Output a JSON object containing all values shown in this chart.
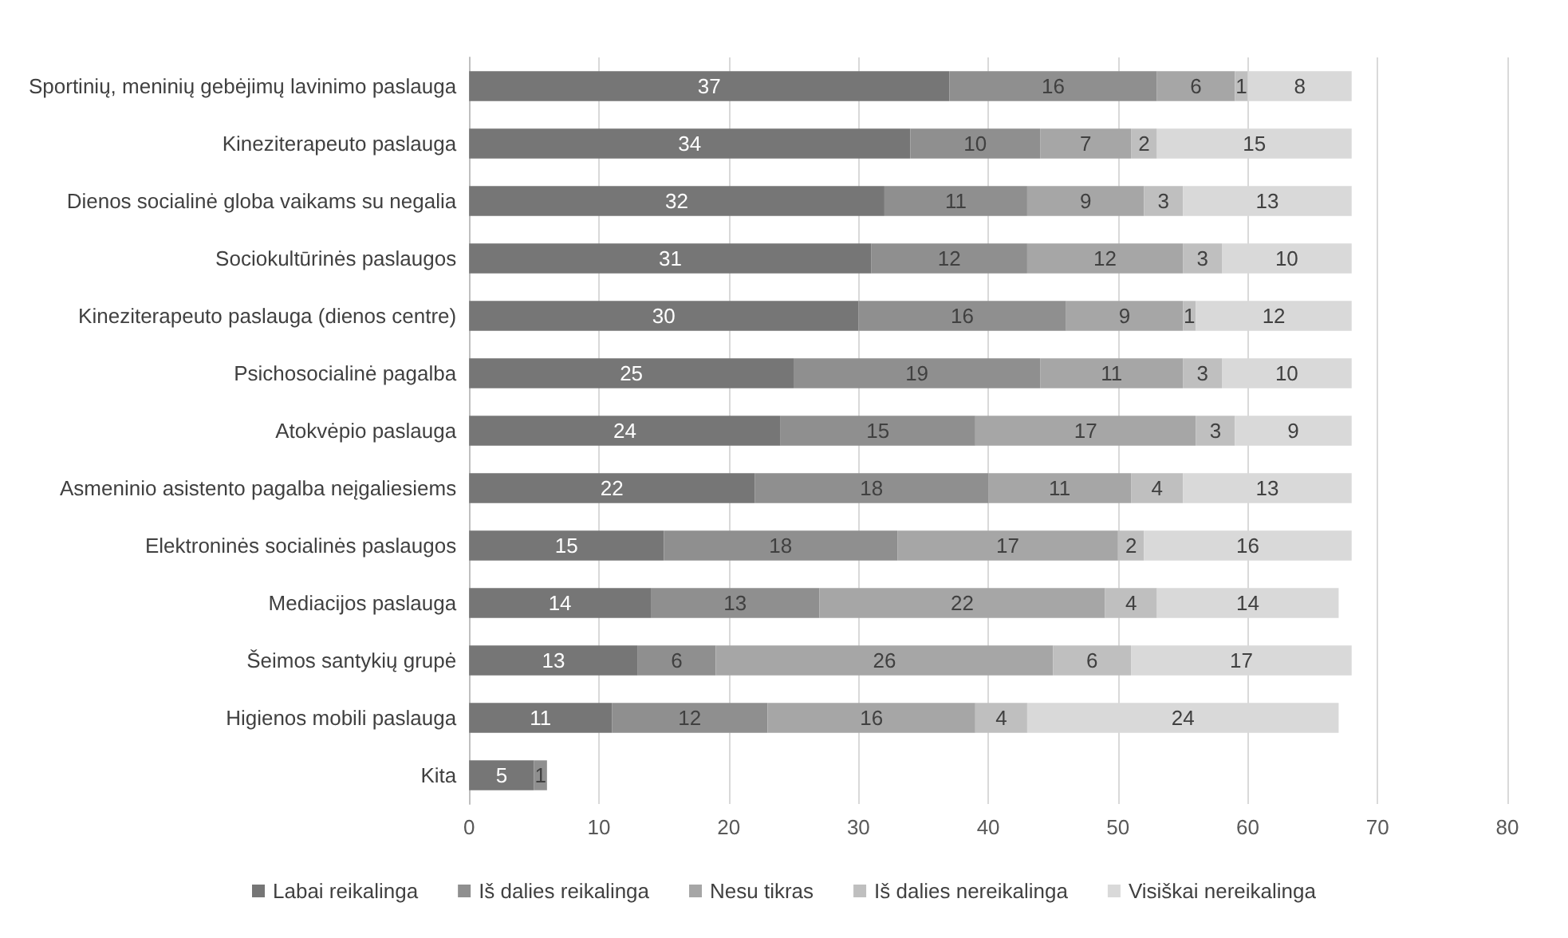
{
  "chart_data": {
    "type": "bar",
    "orientation": "horizontal",
    "stacked": true,
    "data_labels": true,
    "categories": [
      "Sportinių, meninių gebėjimų lavinimo paslauga",
      "Kineziterapeuto paslauga",
      "Dienos socialinė globa vaikams su negalia",
      "Sociokultūrinės paslaugos",
      "Kineziterapeuto paslauga (dienos centre)",
      "Psichosocialinė pagalba",
      "Atokvėpio paslauga",
      "Asmeninio asistento pagalba neįgaliesiems",
      "Elektroninės socialinės paslaugos",
      "Mediacijos paslauga",
      "Šeimos santykių grupė",
      "Higienos mobili paslauga",
      "Kita"
    ],
    "series": [
      {
        "name": "Labai reikalinga",
        "color": "#767676",
        "values": [
          37,
          34,
          32,
          31,
          30,
          25,
          24,
          22,
          15,
          14,
          13,
          11,
          5
        ]
      },
      {
        "name": "Iš dalies reikalinga",
        "color": "#8f8f8f",
        "values": [
          16,
          10,
          11,
          12,
          16,
          19,
          15,
          18,
          18,
          13,
          6,
          12,
          1
        ]
      },
      {
        "name": "Nesu tikras",
        "color": "#a6a6a6",
        "values": [
          6,
          7,
          9,
          12,
          9,
          11,
          17,
          11,
          17,
          22,
          26,
          16,
          null
        ]
      },
      {
        "name": "Iš dalies nereikalinga",
        "color": "#bfbfbf",
        "values": [
          1,
          2,
          3,
          3,
          1,
          3,
          3,
          4,
          2,
          4,
          6,
          4,
          null
        ]
      },
      {
        "name": "Visiškai nereikalinga",
        "color": "#d9d9d9",
        "values": [
          8,
          15,
          13,
          10,
          12,
          10,
          9,
          13,
          16,
          14,
          17,
          24,
          null
        ]
      }
    ],
    "xlim": [
      0,
      80
    ],
    "xticks": [
      0,
      10,
      20,
      30,
      40,
      50,
      60,
      70,
      80
    ],
    "grid": "x",
    "legend": "bottom"
  }
}
